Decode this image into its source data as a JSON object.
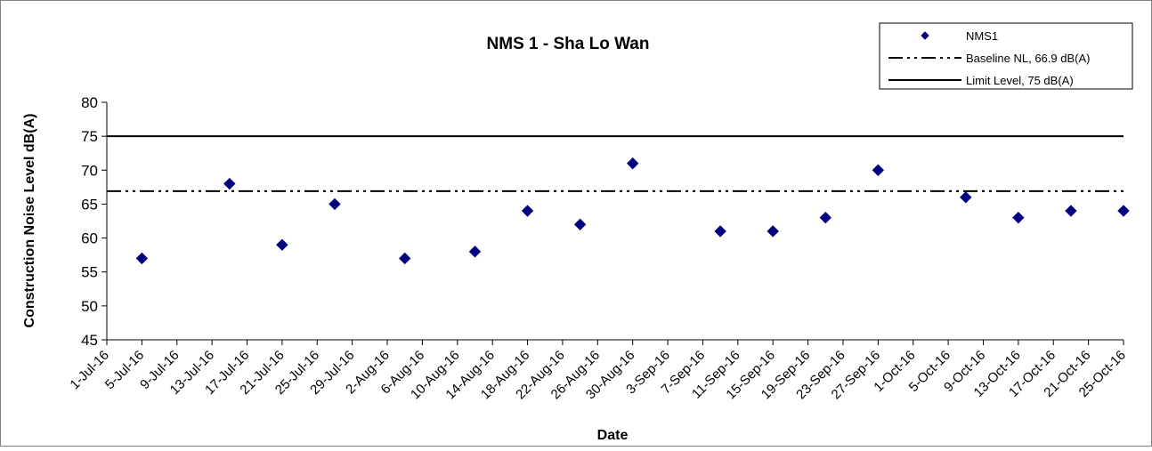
{
  "chart_data": {
    "type": "scatter",
    "title": "NMS 1 - Sha Lo Wan",
    "xlabel": "Date",
    "ylabel": "Construction Noise Level  dB(A)",
    "ylim": [
      45,
      80
    ],
    "yticks": [
      45,
      50,
      55,
      60,
      65,
      70,
      75,
      80
    ],
    "xlim": [
      "2016-07-01",
      "2016-10-25"
    ],
    "xtick_labels": [
      "1-Jul-16",
      "5-Jul-16",
      "9-Jul-16",
      "13-Jul-16",
      "17-Jul-16",
      "21-Jul-16",
      "25-Jul-16",
      "29-Jul-16",
      "2-Aug-16",
      "6-Aug-16",
      "10-Aug-16",
      "14-Aug-16",
      "18-Aug-16",
      "22-Aug-16",
      "26-Aug-16",
      "30-Aug-16",
      "3-Sep-16",
      "7-Sep-16",
      "11-Sep-16",
      "15-Sep-16",
      "19-Sep-16",
      "23-Sep-16",
      "27-Sep-16",
      "1-Oct-16",
      "5-Oct-16",
      "9-Oct-16",
      "13-Oct-16",
      "17-Oct-16",
      "21-Oct-16",
      "25-Oct-16"
    ],
    "grid": false,
    "legend_position": "top-right",
    "series": [
      {
        "name": "NMS1",
        "kind": "markers",
        "marker": "diamond",
        "color": "#00007f",
        "points": [
          {
            "x": "2016-07-05",
            "y": 57
          },
          {
            "x": "2016-07-15",
            "y": 68
          },
          {
            "x": "2016-07-21",
            "y": 59
          },
          {
            "x": "2016-07-27",
            "y": 65
          },
          {
            "x": "2016-08-04",
            "y": 57
          },
          {
            "x": "2016-08-12",
            "y": 58
          },
          {
            "x": "2016-08-18",
            "y": 64
          },
          {
            "x": "2016-08-24",
            "y": 62
          },
          {
            "x": "2016-08-30",
            "y": 71
          },
          {
            "x": "2016-09-09",
            "y": 61
          },
          {
            "x": "2016-09-15",
            "y": 61
          },
          {
            "x": "2016-09-21",
            "y": 63
          },
          {
            "x": "2016-09-27",
            "y": 70
          },
          {
            "x": "2016-10-07",
            "y": 66
          },
          {
            "x": "2016-10-13",
            "y": 63
          },
          {
            "x": "2016-10-19",
            "y": 64
          },
          {
            "x": "2016-10-25",
            "y": 64
          }
        ]
      },
      {
        "name": "Baseline NL, 66.9 dB(A)",
        "kind": "hline",
        "y": 66.9,
        "line_style": "dash-dot-dot",
        "color": "#000000"
      },
      {
        "name": "Limit Level, 75 dB(A)",
        "kind": "hline",
        "y": 75,
        "line_style": "solid",
        "color": "#000000"
      }
    ]
  }
}
